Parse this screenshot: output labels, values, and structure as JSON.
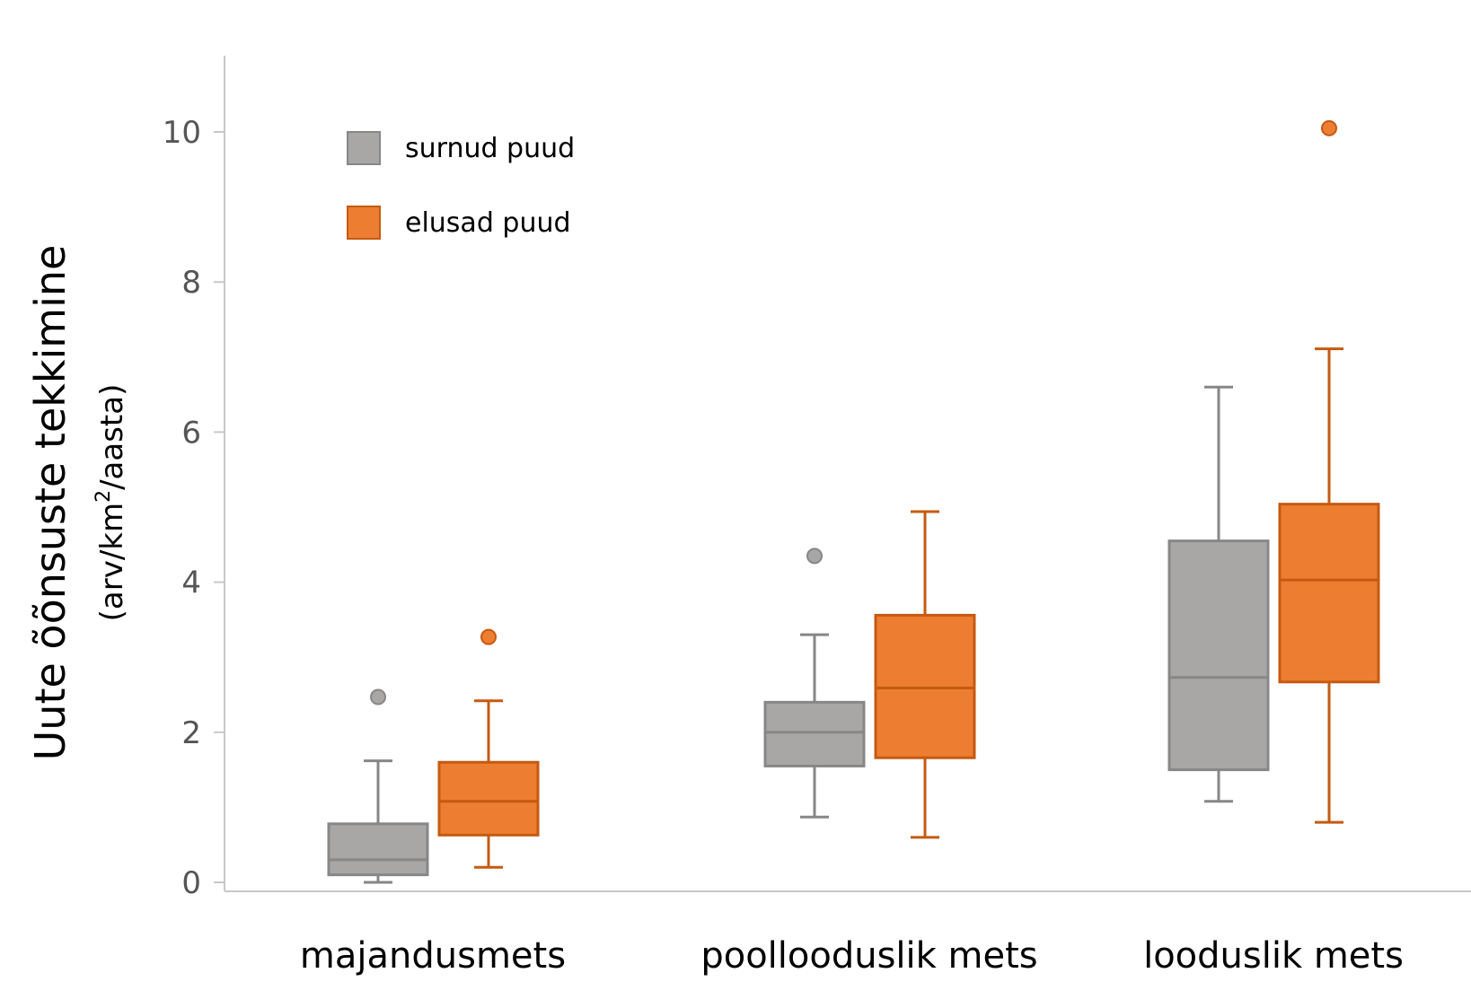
{
  "chart_data": {
    "type": "box",
    "title": "",
    "xlabel": "",
    "ylabel": "Uute õõnsuste tekkimine",
    "ylabel_unit_parts": [
      "(arv/km",
      "2",
      "/aasta)"
    ],
    "ylim": [
      0,
      11
    ],
    "yticks": [
      0,
      2,
      4,
      6,
      8,
      10
    ],
    "grid": false,
    "legend_position": "top-left",
    "categories": [
      "majandusmets",
      "poollooduslik mets",
      "looduslik mets"
    ],
    "series": [
      {
        "name": "surnud puud",
        "color": "#a9a7a6",
        "edge_color": "#878787",
        "boxes": [
          {
            "whisker_low": 0.0,
            "q1": 0.1,
            "median": 0.3,
            "q3": 0.78,
            "whisker_high": 1.62,
            "outliers": [
              2.47
            ]
          },
          {
            "whisker_low": 0.87,
            "q1": 1.55,
            "median": 2.0,
            "q3": 2.4,
            "whisker_high": 3.3,
            "outliers": [
              4.35
            ]
          },
          {
            "whisker_low": 1.08,
            "q1": 1.5,
            "median": 2.73,
            "q3": 4.55,
            "whisker_high": 6.6,
            "outliers": []
          }
        ]
      },
      {
        "name": "elusad puud",
        "color": "#ed7d31",
        "edge_color": "#c55a11",
        "boxes": [
          {
            "whisker_low": 0.2,
            "q1": 0.63,
            "median": 1.08,
            "q3": 1.6,
            "whisker_high": 2.42,
            "outliers": [
              3.27
            ]
          },
          {
            "whisker_low": 0.6,
            "q1": 1.66,
            "median": 2.59,
            "q3": 3.56,
            "whisker_high": 4.94,
            "outliers": []
          },
          {
            "whisker_low": 0.8,
            "q1": 2.67,
            "median": 4.03,
            "q3": 5.04,
            "whisker_high": 7.11,
            "outliers": [
              10.05
            ]
          }
        ]
      }
    ]
  }
}
